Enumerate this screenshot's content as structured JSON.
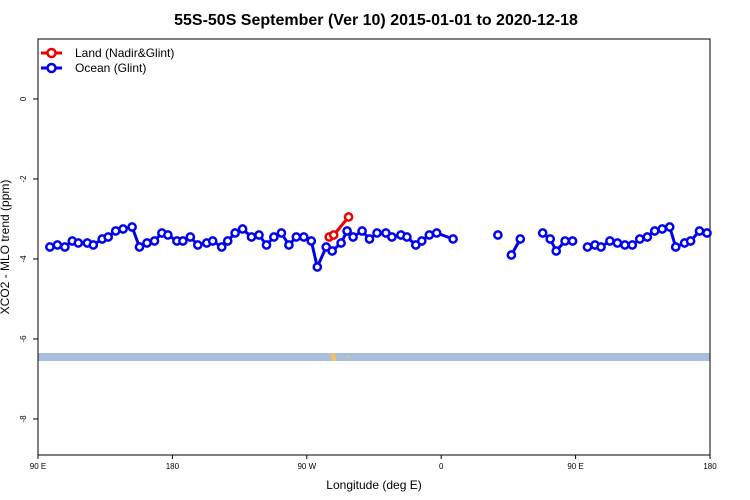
{
  "chart_data": {
    "type": "line",
    "title": "55S-50S September (Ver 10)   2015-01-01 to 2020-12-18",
    "xlabel": "Longitude (deg E)",
    "ylabel": "XCO2 - MLO trend (ppm)",
    "xlim": [
      90,
      540
    ],
    "ylim": [
      -8.9,
      1.5
    ],
    "x_ticks": [
      {
        "value": 90,
        "label": "90 E"
      },
      {
        "value": 180,
        "label": "180"
      },
      {
        "value": 270,
        "label": "90 W"
      },
      {
        "value": 360,
        "label": "0"
      },
      {
        "value": 450,
        "label": "90 E"
      },
      {
        "value": 540,
        "label": "180"
      }
    ],
    "y_ticks": [
      {
        "value": 0,
        "label": "0"
      },
      {
        "value": -2,
        "label": "-2"
      },
      {
        "value": -4,
        "label": "-4"
      },
      {
        "value": -6,
        "label": "-6"
      },
      {
        "value": -8,
        "label": "-8"
      }
    ],
    "legend_position": "top-left",
    "series": [
      {
        "name": "Land (Nadir&Glint)",
        "color": "#ee0000",
        "points": [
          [
            285,
            -3.45
          ],
          [
            288,
            -3.4
          ],
          [
            298,
            -2.95
          ]
        ]
      },
      {
        "name": "Ocean (Glint)",
        "color": "#0000ee",
        "points": [
          [
            98,
            -3.7
          ],
          [
            103,
            -3.65
          ],
          [
            108,
            -3.7
          ],
          [
            113,
            -3.55
          ],
          [
            117,
            -3.6
          ],
          [
            123,
            -3.6
          ],
          [
            127,
            -3.65
          ],
          [
            133,
            -3.5
          ],
          [
            137,
            -3.45
          ],
          [
            142,
            -3.3
          ],
          [
            147,
            -3.25
          ],
          [
            153,
            -3.2
          ],
          [
            158,
            -3.7
          ],
          [
            163,
            -3.6
          ],
          [
            168,
            -3.55
          ],
          [
            173,
            -3.35
          ],
          [
            177,
            -3.4
          ],
          [
            183,
            -3.55
          ],
          [
            187,
            -3.55
          ],
          [
            192,
            -3.45
          ],
          [
            197,
            -3.65
          ],
          [
            203,
            -3.6
          ],
          [
            207,
            -3.55
          ],
          [
            213,
            -3.7
          ],
          [
            217,
            -3.55
          ],
          [
            222,
            -3.35
          ],
          [
            227,
            -3.25
          ],
          [
            233,
            -3.45
          ],
          [
            238,
            -3.4
          ],
          [
            243,
            -3.65
          ],
          [
            248,
            -3.45
          ],
          [
            253,
            -3.35
          ],
          [
            258,
            -3.65
          ],
          [
            263,
            -3.45
          ],
          [
            268,
            -3.45
          ],
          [
            273,
            -3.55
          ],
          [
            277,
            -4.2
          ],
          [
            283,
            -3.7
          ],
          [
            287,
            -3.8
          ],
          [
            293,
            -3.6
          ],
          [
            297,
            -3.3
          ],
          [
            301,
            -3.45
          ],
          [
            307,
            -3.3
          ],
          [
            312,
            -3.5
          ],
          [
            317,
            -3.35
          ],
          [
            323,
            -3.35
          ],
          [
            327,
            -3.45
          ],
          [
            333,
            -3.4
          ],
          [
            337,
            -3.45
          ],
          [
            343,
            -3.65
          ],
          [
            347,
            -3.55
          ],
          [
            352,
            -3.4
          ],
          [
            357,
            -3.35
          ],
          [
            368,
            -3.5
          ],
          null,
          [
            398,
            -3.4
          ],
          null,
          [
            407,
            -3.9
          ],
          [
            413,
            -3.5
          ],
          null,
          [
            428,
            -3.35
          ],
          [
            433,
            -3.5
          ],
          [
            437,
            -3.8
          ],
          [
            443,
            -3.55
          ],
          [
            448,
            -3.55
          ],
          null,
          [
            458,
            -3.7
          ],
          [
            463,
            -3.65
          ],
          [
            467,
            -3.7
          ],
          [
            473,
            -3.55
          ],
          [
            478,
            -3.6
          ],
          [
            483,
            -3.65
          ],
          [
            488,
            -3.65
          ],
          [
            493,
            -3.5
          ],
          [
            498,
            -3.45
          ],
          [
            503,
            -3.3
          ],
          [
            508,
            -3.25
          ],
          [
            513,
            -3.2
          ],
          [
            517,
            -3.7
          ],
          [
            523,
            -3.6
          ],
          [
            527,
            -3.55
          ],
          [
            533,
            -3.3
          ],
          [
            538,
            -3.35
          ]
        ]
      }
    ],
    "land_band": {
      "y_top": -6.35,
      "y_bottom": -6.55,
      "color": "#a8bfdc",
      "marker_x": 287,
      "marker_color": "#f5c060"
    }
  }
}
